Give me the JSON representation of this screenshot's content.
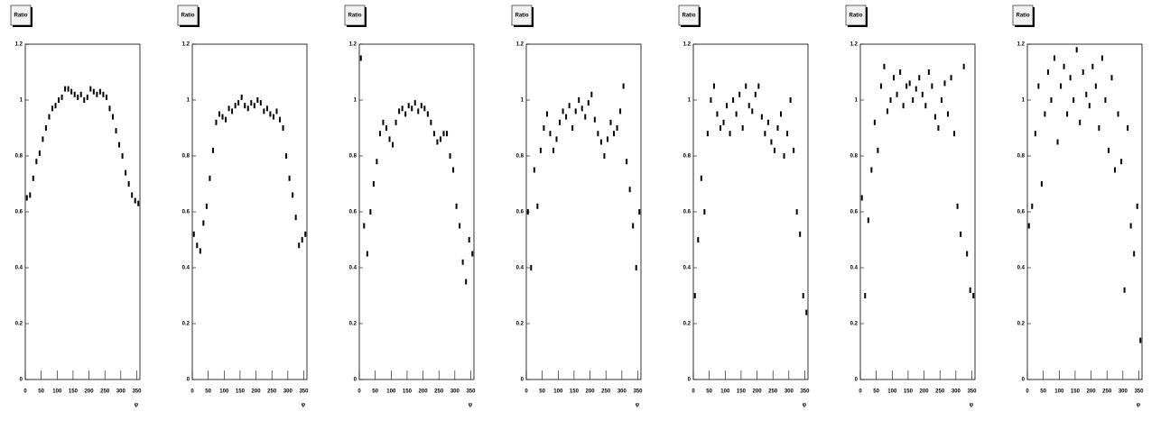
{
  "chart_data": [
    {
      "type": "scatter",
      "title": "Ratio",
      "x_label": "φ",
      "color": "#000000",
      "xlim": [
        0,
        360
      ],
      "ylim": [
        0,
        1.2
      ],
      "xticks": [
        0,
        50,
        100,
        150,
        200,
        250,
        300,
        350
      ],
      "yticks": [
        0,
        0.2,
        0.4,
        0.6,
        0.8,
        1,
        1.2
      ],
      "x": [
        5,
        15,
        25,
        35,
        45,
        55,
        65,
        75,
        85,
        95,
        105,
        115,
        125,
        135,
        145,
        155,
        165,
        175,
        185,
        195,
        205,
        215,
        225,
        235,
        245,
        255,
        265,
        275,
        285,
        295,
        305,
        315,
        325,
        335,
        345,
        355
      ],
      "values": [
        0.65,
        0.66,
        0.72,
        0.78,
        0.81,
        0.86,
        0.9,
        0.94,
        0.97,
        0.98,
        1.0,
        1.01,
        1.04,
        1.04,
        1.03,
        1.02,
        1.01,
        1.02,
        1.0,
        1.01,
        1.04,
        1.03,
        1.02,
        1.03,
        1.02,
        1.01,
        0.97,
        0.94,
        0.89,
        0.84,
        0.8,
        0.74,
        0.7,
        0.66,
        0.64,
        0.63
      ]
    },
    {
      "type": "scatter",
      "title": "Ratio",
      "x_label": "φ",
      "color": "#000000",
      "xlim": [
        0,
        360
      ],
      "ylim": [
        0,
        1.2
      ],
      "xticks": [
        0,
        50,
        100,
        150,
        200,
        250,
        300,
        350
      ],
      "yticks": [
        0,
        0.2,
        0.4,
        0.6,
        0.8,
        1,
        1.2
      ],
      "x": [
        5,
        15,
        25,
        35,
        45,
        55,
        65,
        75,
        85,
        95,
        105,
        115,
        125,
        135,
        145,
        155,
        165,
        175,
        185,
        195,
        205,
        215,
        225,
        235,
        245,
        255,
        265,
        275,
        285,
        295,
        305,
        315,
        325,
        335,
        345,
        355
      ],
      "values": [
        0.52,
        0.48,
        0.46,
        0.56,
        0.62,
        0.72,
        0.82,
        0.92,
        0.95,
        0.94,
        0.93,
        0.97,
        0.96,
        0.98,
        0.99,
        1.01,
        0.98,
        0.97,
        0.99,
        0.98,
        1.0,
        0.99,
        0.96,
        0.97,
        0.95,
        0.94,
        0.96,
        0.93,
        0.9,
        0.8,
        0.72,
        0.66,
        0.58,
        0.48,
        0.5,
        0.52
      ]
    },
    {
      "type": "scatter",
      "title": "Ratio",
      "x_label": "φ",
      "color": "#000000",
      "xlim": [
        0,
        360
      ],
      "ylim": [
        0,
        1.2
      ],
      "xticks": [
        0,
        50,
        100,
        150,
        200,
        250,
        300,
        350
      ],
      "yticks": [
        0,
        0.2,
        0.4,
        0.6,
        0.8,
        1,
        1.2
      ],
      "x": [
        5,
        15,
        25,
        35,
        45,
        55,
        65,
        75,
        85,
        95,
        105,
        115,
        125,
        135,
        145,
        155,
        165,
        175,
        185,
        195,
        205,
        215,
        225,
        235,
        245,
        255,
        265,
        275,
        285,
        295,
        305,
        315,
        325,
        335,
        345,
        355
      ],
      "values": [
        1.15,
        0.55,
        0.45,
        0.6,
        0.7,
        0.78,
        0.88,
        0.92,
        0.9,
        0.86,
        0.84,
        0.92,
        0.96,
        0.97,
        0.95,
        0.98,
        0.97,
        0.99,
        0.96,
        0.98,
        0.97,
        0.95,
        0.92,
        0.88,
        0.85,
        0.86,
        0.88,
        0.88,
        0.8,
        0.75,
        0.62,
        0.55,
        0.42,
        0.35,
        0.5,
        0.45
      ]
    },
    {
      "type": "scatter",
      "title": "Ratio",
      "x_label": "φ",
      "color": "#000000",
      "xlim": [
        0,
        360
      ],
      "ylim": [
        0,
        1.2
      ],
      "xticks": [
        0,
        50,
        100,
        150,
        200,
        250,
        300,
        350
      ],
      "yticks": [
        0,
        0.2,
        0.4,
        0.6,
        0.8,
        1,
        1.2
      ],
      "x": [
        5,
        15,
        25,
        35,
        45,
        55,
        65,
        75,
        85,
        95,
        105,
        115,
        125,
        135,
        145,
        155,
        165,
        175,
        185,
        195,
        205,
        215,
        225,
        235,
        245,
        255,
        265,
        275,
        285,
        295,
        305,
        315,
        325,
        335,
        345,
        355
      ],
      "values": [
        0.6,
        0.4,
        0.75,
        0.62,
        0.82,
        0.9,
        0.95,
        0.88,
        0.82,
        0.86,
        0.92,
        0.96,
        0.94,
        0.98,
        0.9,
        0.96,
        1.0,
        0.97,
        0.94,
        0.99,
        1.02,
        0.93,
        0.88,
        0.85,
        0.8,
        0.86,
        0.92,
        0.88,
        0.9,
        0.96,
        1.05,
        0.78,
        0.68,
        0.55,
        0.4,
        0.6
      ]
    },
    {
      "type": "scatter",
      "title": "Ratio",
      "x_label": "φ",
      "color": "#000000",
      "xlim": [
        0,
        360
      ],
      "ylim": [
        0,
        1.2
      ],
      "xticks": [
        0,
        50,
        100,
        150,
        200,
        250,
        300,
        350
      ],
      "yticks": [
        0,
        0.2,
        0.4,
        0.6,
        0.8,
        1,
        1.2
      ],
      "x": [
        5,
        15,
        25,
        35,
        45,
        55,
        65,
        75,
        85,
        95,
        105,
        115,
        125,
        135,
        145,
        155,
        165,
        175,
        185,
        195,
        205,
        215,
        225,
        235,
        245,
        255,
        265,
        275,
        285,
        295,
        305,
        315,
        325,
        335,
        345,
        355
      ],
      "values": [
        0.3,
        0.5,
        0.72,
        0.6,
        0.88,
        1.0,
        1.05,
        0.95,
        0.9,
        0.92,
        0.98,
        0.88,
        1.0,
        0.95,
        1.02,
        0.9,
        1.05,
        0.98,
        0.96,
        1.02,
        1.05,
        0.94,
        0.88,
        0.92,
        0.85,
        0.82,
        0.9,
        0.95,
        0.8,
        0.88,
        1.0,
        0.82,
        0.6,
        0.52,
        0.3,
        0.24
      ]
    },
    {
      "type": "scatter",
      "title": "Ratio",
      "x_label": "φ",
      "color": "#000000",
      "xlim": [
        0,
        360
      ],
      "ylim": [
        0,
        1.2
      ],
      "xticks": [
        0,
        50,
        100,
        150,
        200,
        250,
        300,
        350
      ],
      "yticks": [
        0,
        0.2,
        0.4,
        0.6,
        0.8,
        1,
        1.2
      ],
      "x": [
        5,
        15,
        25,
        35,
        45,
        55,
        65,
        75,
        85,
        95,
        105,
        115,
        125,
        135,
        145,
        155,
        165,
        175,
        185,
        195,
        205,
        215,
        225,
        235,
        245,
        255,
        265,
        275,
        285,
        295,
        305,
        315,
        325,
        335,
        345,
        355
      ],
      "values": [
        0.65,
        0.3,
        0.57,
        0.75,
        0.92,
        0.82,
        1.05,
        1.12,
        0.96,
        1.0,
        1.08,
        1.02,
        1.1,
        0.98,
        1.05,
        1.06,
        1.0,
        1.04,
        1.08,
        1.02,
        0.98,
        1.1,
        1.05,
        0.94,
        0.9,
        1.0,
        1.06,
        0.95,
        1.08,
        0.88,
        0.62,
        0.52,
        1.12,
        0.45,
        0.32,
        0.3
      ]
    },
    {
      "type": "scatter",
      "title": "Ratio",
      "x_label": "φ",
      "color": "#000000",
      "xlim": [
        0,
        360
      ],
      "ylim": [
        0,
        1.2
      ],
      "xticks": [
        0,
        50,
        100,
        150,
        200,
        250,
        300,
        350
      ],
      "yticks": [
        0,
        0.2,
        0.4,
        0.6,
        0.8,
        1,
        1.2
      ],
      "x": [
        5,
        15,
        25,
        35,
        45,
        55,
        65,
        75,
        85,
        95,
        105,
        115,
        125,
        135,
        145,
        155,
        165,
        175,
        185,
        195,
        205,
        215,
        225,
        235,
        245,
        255,
        265,
        275,
        285,
        295,
        305,
        315,
        325,
        335,
        345,
        355
      ],
      "values": [
        0.55,
        0.62,
        0.88,
        1.05,
        0.7,
        0.95,
        1.1,
        1.0,
        1.15,
        0.85,
        1.05,
        1.12,
        0.95,
        1.08,
        1.0,
        1.18,
        0.92,
        1.1,
        1.02,
        0.98,
        1.12,
        1.05,
        0.9,
        1.15,
        1.0,
        0.82,
        1.08,
        0.75,
        0.95,
        0.78,
        0.32,
        0.9,
        0.55,
        0.45,
        0.62,
        0.14
      ]
    }
  ]
}
